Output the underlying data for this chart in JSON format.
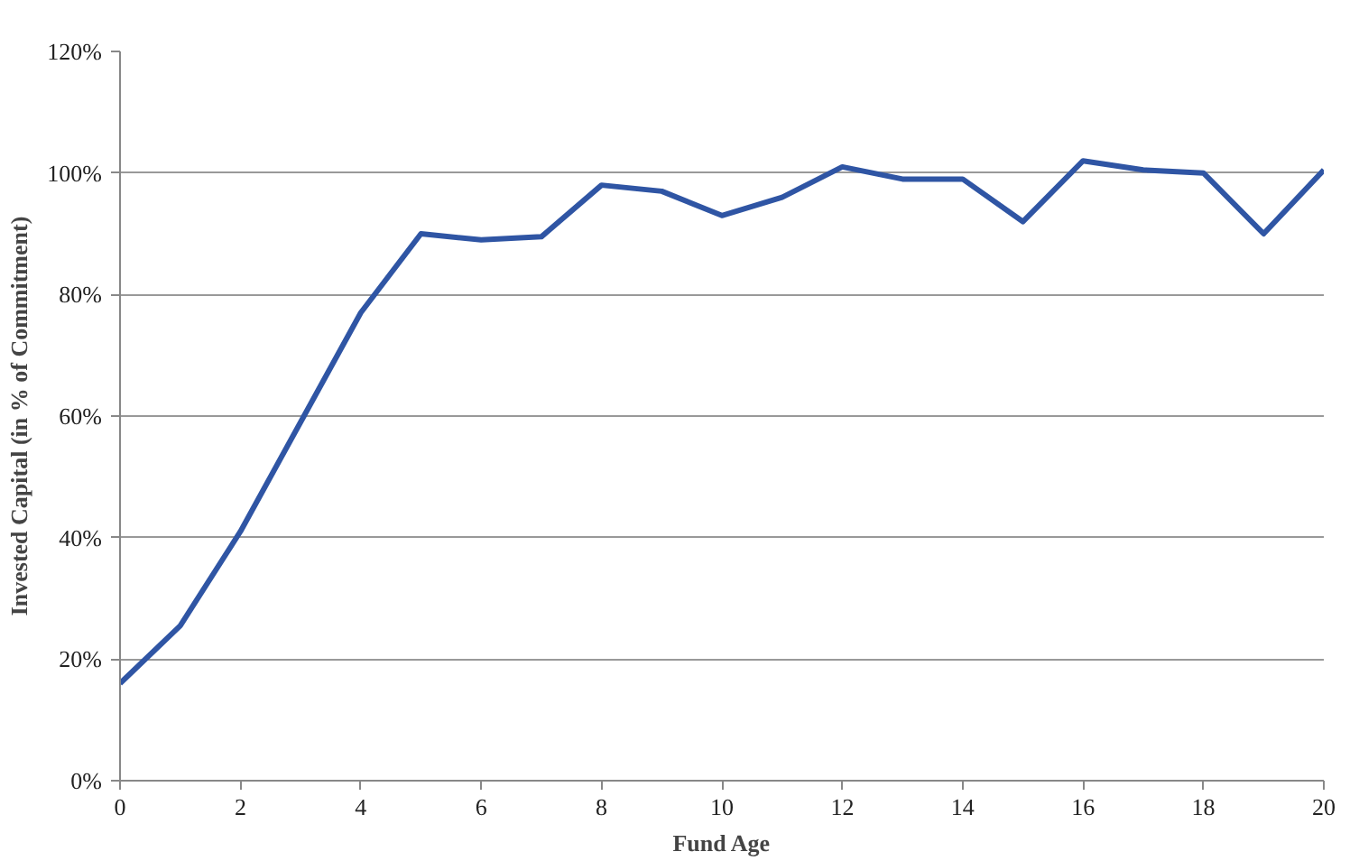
{
  "chart_data": {
    "type": "line",
    "xlabel": "Fund Age",
    "ylabel": "Invested Capital (in % of Commitment)",
    "x": [
      0,
      1,
      2,
      3,
      4,
      5,
      6,
      7,
      8,
      9,
      10,
      11,
      12,
      13,
      14,
      15,
      16,
      17,
      18,
      19,
      20
    ],
    "series": [
      {
        "color": "#2f55a4",
        "values": [
          16,
          25.5,
          41,
          59,
          77,
          90,
          89,
          89.5,
          98,
          97,
          93,
          96,
          101,
          99,
          99,
          92,
          102,
          100.5,
          100,
          90,
          100.5
        ]
      }
    ],
    "xlim": [
      0,
      20
    ],
    "xticks": [
      0,
      2,
      4,
      6,
      8,
      10,
      12,
      14,
      16,
      18,
      20
    ],
    "ylim": [
      0,
      120
    ],
    "yticks": [
      {
        "value": 0,
        "label": "0%"
      },
      {
        "value": 20,
        "label": "20%"
      },
      {
        "value": 40,
        "label": "40%"
      },
      {
        "value": 60,
        "label": "60%"
      },
      {
        "value": 80,
        "label": "80%"
      },
      {
        "value": 100,
        "label": "100%"
      },
      {
        "value": 120,
        "label": "120%"
      }
    ],
    "grid": "y",
    "marker": "none",
    "line_style": "solid"
  }
}
